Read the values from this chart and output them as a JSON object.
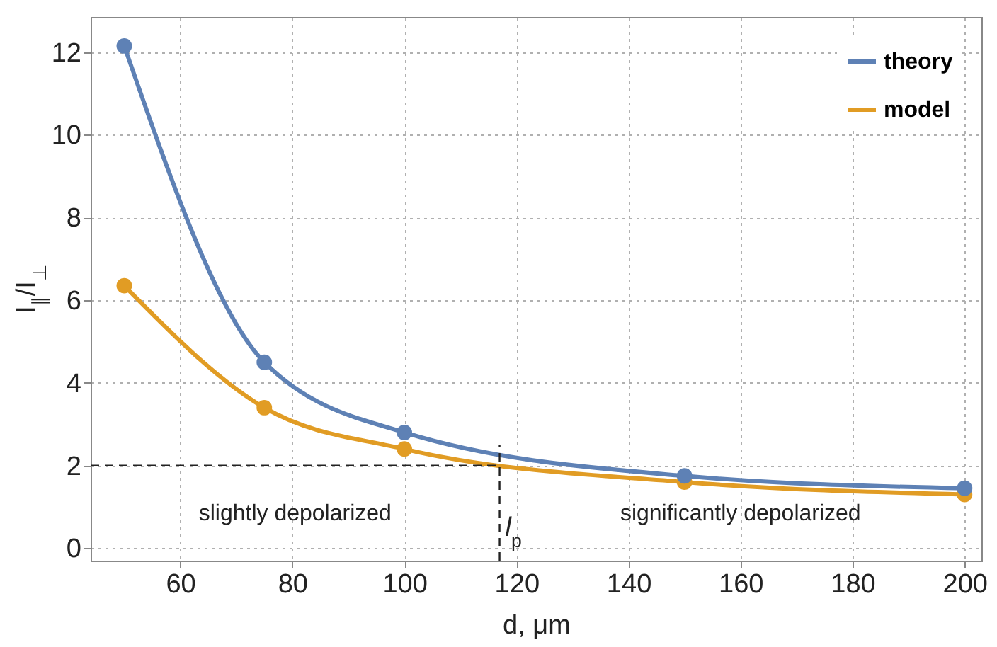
{
  "chart_data": {
    "type": "line",
    "xlabel": "d, μm",
    "ylabel": "I$_{∥}$/I$_{⊥}$",
    "x": [
      50,
      75,
      100,
      150,
      200
    ],
    "series": [
      {
        "name": "theory",
        "color": "#5e81b5",
        "values": [
          12.15,
          4.5,
          2.8,
          1.75,
          1.45
        ]
      },
      {
        "name": "model",
        "color": "#e19c24",
        "values": [
          6.35,
          3.4,
          2.4,
          1.6,
          1.3
        ]
      }
    ],
    "xlim": [
      44,
      203
    ],
    "xticks": [
      60,
      80,
      100,
      120,
      140,
      160,
      180,
      200
    ],
    "ylim": [
      -0.3,
      12.85
    ],
    "yticks": [
      0,
      2,
      4,
      6,
      8,
      10,
      12
    ],
    "ref_lines": [
      {
        "axis": "y",
        "value": 2,
        "line_style": "dashed"
      },
      {
        "axis": "x",
        "value": 117,
        "label": "l$_{p}$",
        "line_style": "dashed"
      }
    ],
    "annotations": [
      "slightly depolarized",
      "significantly depolarized"
    ],
    "grid": true,
    "legend": "top right",
    "marker": "circle",
    "line_style": "solid"
  }
}
